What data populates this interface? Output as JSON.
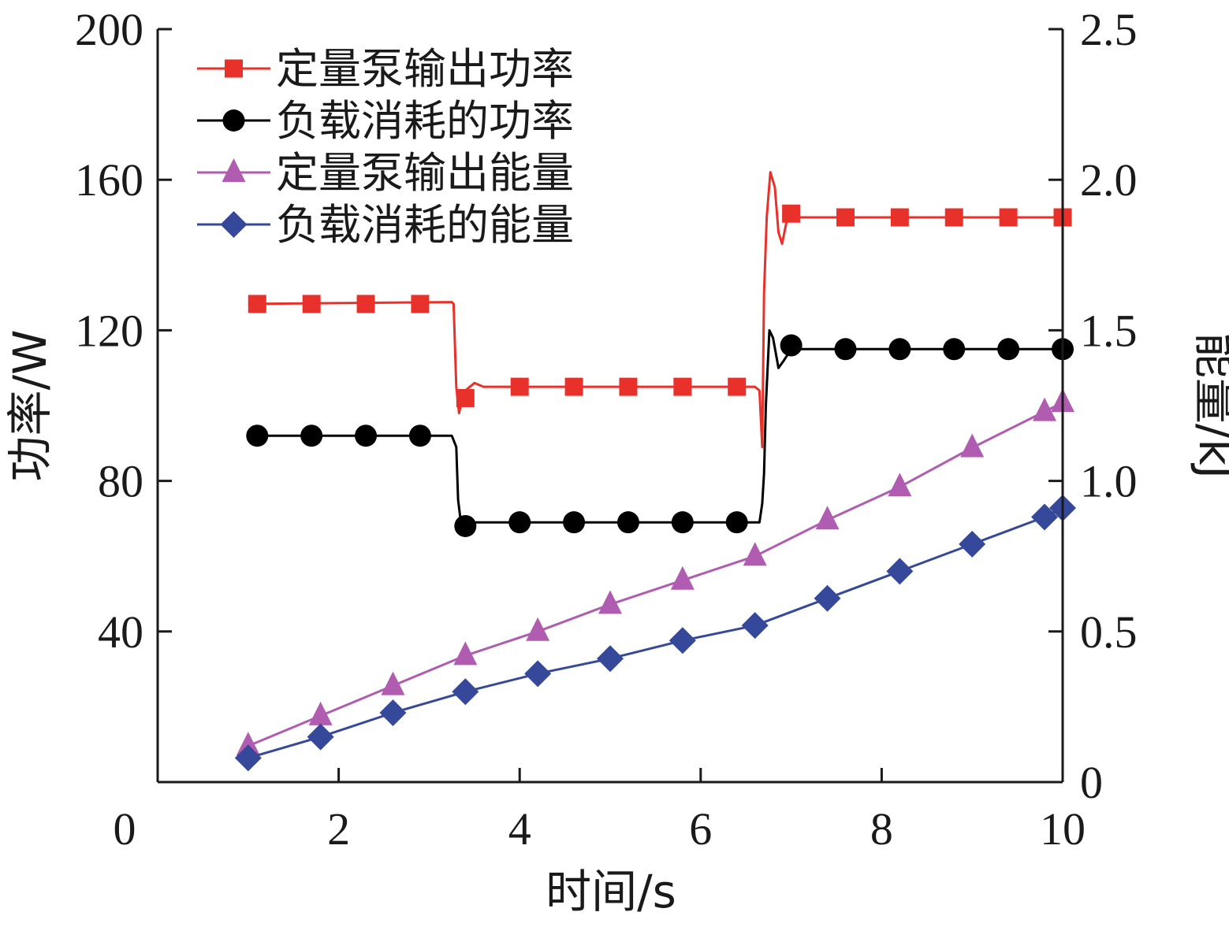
{
  "chart_data": {
    "type": "line",
    "xlabel": "时间/s",
    "ylabel_left": "功率/W",
    "ylabel_right": "能量/kJ",
    "xlim": [
      0,
      10
    ],
    "ylim_left": [
      0,
      200
    ],
    "ylim_right": [
      0,
      2.5
    ],
    "x_ticks": [
      "0",
      "2",
      "4",
      "6",
      "8",
      "10"
    ],
    "y_ticks_left": [
      "200",
      "160",
      "120",
      "80",
      "40"
    ],
    "y_ticks_right": [
      "2.5",
      "2.0",
      "1.5",
      "1.0",
      "0.5",
      "0"
    ],
    "legend_position": "top-left",
    "grid": false,
    "series": [
      {
        "name": "定量泵输出功率",
        "axis": "left",
        "marker": "square",
        "color": "#e8312a",
        "line": [
          [
            1.0,
            127
          ],
          [
            3.25,
            127.5
          ],
          [
            3.27,
            127
          ],
          [
            3.3,
            105
          ],
          [
            3.33,
            98
          ],
          [
            3.36,
            101
          ],
          [
            3.4,
            104
          ],
          [
            3.5,
            106
          ],
          [
            3.6,
            105
          ],
          [
            3.8,
            105
          ],
          [
            6.6,
            105
          ],
          [
            6.65,
            104
          ],
          [
            6.68,
            89
          ],
          [
            6.7,
            130
          ],
          [
            6.73,
            150
          ],
          [
            6.77,
            162
          ],
          [
            6.82,
            158
          ],
          [
            6.86,
            146
          ],
          [
            6.9,
            143
          ],
          [
            6.95,
            149
          ],
          [
            7.0,
            151
          ],
          [
            7.1,
            150
          ],
          [
            7.3,
            150
          ],
          [
            10.0,
            150
          ]
        ],
        "points": [
          [
            1.1,
            127
          ],
          [
            1.7,
            127
          ],
          [
            2.3,
            127
          ],
          [
            2.9,
            127
          ],
          [
            3.4,
            102
          ],
          [
            4.0,
            105
          ],
          [
            4.6,
            105
          ],
          [
            5.2,
            105
          ],
          [
            5.8,
            105
          ],
          [
            6.4,
            105
          ],
          [
            7.0,
            151
          ],
          [
            7.6,
            150
          ],
          [
            8.2,
            150
          ],
          [
            8.8,
            150
          ],
          [
            9.4,
            150
          ],
          [
            10.0,
            150
          ]
        ]
      },
      {
        "name": "负载消耗的功率",
        "axis": "left",
        "marker": "circle",
        "color": "#000000",
        "line": [
          [
            1.0,
            92
          ],
          [
            3.25,
            92
          ],
          [
            3.3,
            89
          ],
          [
            3.32,
            75
          ],
          [
            3.35,
            69
          ],
          [
            3.4,
            68
          ],
          [
            3.5,
            69
          ],
          [
            3.8,
            69
          ],
          [
            6.65,
            69
          ],
          [
            6.68,
            74
          ],
          [
            6.7,
            82
          ],
          [
            6.72,
            100
          ],
          [
            6.76,
            120
          ],
          [
            6.8,
            118
          ],
          [
            6.86,
            110
          ],
          [
            6.92,
            112
          ],
          [
            7.0,
            115
          ],
          [
            7.1,
            115
          ],
          [
            10.0,
            115
          ]
        ],
        "points": [
          [
            1.1,
            92
          ],
          [
            1.7,
            92
          ],
          [
            2.3,
            92
          ],
          [
            2.9,
            92
          ],
          [
            3.4,
            68
          ],
          [
            4.0,
            69
          ],
          [
            4.6,
            69
          ],
          [
            5.2,
            69
          ],
          [
            5.8,
            69
          ],
          [
            6.4,
            69
          ],
          [
            7.0,
            116
          ],
          [
            7.6,
            115
          ],
          [
            8.2,
            115
          ],
          [
            8.8,
            115
          ],
          [
            9.4,
            115
          ],
          [
            10.0,
            115
          ]
        ]
      },
      {
        "name": "定量泵输出能量",
        "axis": "right",
        "marker": "triangle",
        "color": "#b05cb0",
        "line": [
          [
            1.0,
            0.12
          ],
          [
            1.8,
            0.22
          ],
          [
            2.6,
            0.32
          ],
          [
            3.4,
            0.42
          ],
          [
            4.2,
            0.5
          ],
          [
            5.0,
            0.59
          ],
          [
            5.8,
            0.67
          ],
          [
            6.6,
            0.75
          ],
          [
            7.4,
            0.87
          ],
          [
            8.2,
            0.98
          ],
          [
            9.0,
            1.11
          ],
          [
            9.8,
            1.23
          ],
          [
            10.0,
            1.26
          ]
        ],
        "points": [
          [
            1.0,
            0.12
          ],
          [
            1.8,
            0.22
          ],
          [
            2.6,
            0.32
          ],
          [
            3.4,
            0.42
          ],
          [
            4.2,
            0.5
          ],
          [
            5.0,
            0.59
          ],
          [
            5.8,
            0.67
          ],
          [
            6.6,
            0.75
          ],
          [
            7.4,
            0.87
          ],
          [
            8.2,
            0.98
          ],
          [
            9.0,
            1.11
          ],
          [
            9.8,
            1.23
          ],
          [
            10.0,
            1.26
          ]
        ]
      },
      {
        "name": "负载消耗的能量",
        "axis": "right",
        "marker": "diamond",
        "color": "#35489a",
        "line": [
          [
            1.0,
            0.08
          ],
          [
            1.8,
            0.15
          ],
          [
            2.6,
            0.23
          ],
          [
            3.4,
            0.3
          ],
          [
            4.2,
            0.36
          ],
          [
            5.0,
            0.41
          ],
          [
            5.8,
            0.47
          ],
          [
            6.6,
            0.52
          ],
          [
            7.4,
            0.61
          ],
          [
            8.2,
            0.7
          ],
          [
            9.0,
            0.79
          ],
          [
            9.8,
            0.88
          ],
          [
            10.0,
            0.91
          ]
        ],
        "points": [
          [
            1.0,
            0.08
          ],
          [
            1.8,
            0.15
          ],
          [
            2.6,
            0.23
          ],
          [
            3.4,
            0.3
          ],
          [
            4.2,
            0.36
          ],
          [
            5.0,
            0.41
          ],
          [
            5.8,
            0.47
          ],
          [
            6.6,
            0.52
          ],
          [
            7.4,
            0.61
          ],
          [
            8.2,
            0.7
          ],
          [
            9.0,
            0.79
          ],
          [
            9.8,
            0.88
          ],
          [
            10.0,
            0.91
          ]
        ]
      }
    ]
  }
}
